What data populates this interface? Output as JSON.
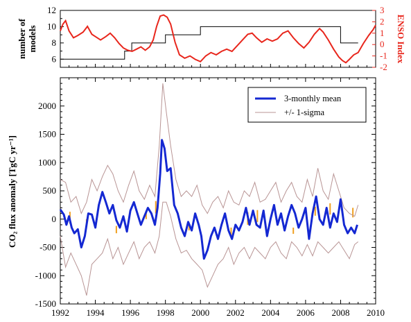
{
  "chart_data": [
    {
      "id": "top-panel",
      "type": "line",
      "ylabel_left_lines": [
        "number of",
        "models"
      ],
      "ylabel_right": "ENSO Index",
      "xlim": [
        1992,
        2010
      ],
      "ylim_left": [
        5,
        12
      ],
      "ylim_right": [
        -2,
        3
      ],
      "yticks_left": [
        6,
        8,
        10,
        12
      ],
      "yticks_right": [
        -2,
        -1,
        0,
        1,
        2,
        3
      ],
      "colors": {
        "models": "#000000",
        "enso": "#e8261c",
        "right_axis": "#e8261c"
      },
      "series": [
        {
          "key": "models",
          "axis": "left",
          "step": true,
          "x": [
            1992.0,
            1995.67,
            1995.67,
            1996.08,
            1996.08,
            1998.0,
            1998.0,
            2000.0,
            2000.0,
            2008.0,
            2008.0,
            2009.0
          ],
          "values": [
            6,
            6,
            7,
            7,
            8,
            8,
            9,
            9,
            10,
            10,
            8,
            8
          ]
        },
        {
          "key": "enso",
          "axis": "right",
          "x": [
            1992.0,
            1992.15,
            1992.3,
            1992.5,
            1992.75,
            1993.0,
            1993.3,
            1993.55,
            1993.8,
            1994.0,
            1994.3,
            1994.6,
            1994.85,
            1995.1,
            1995.35,
            1995.6,
            1995.85,
            1996.1,
            1996.35,
            1996.6,
            1996.85,
            1997.1,
            1997.3,
            1997.5,
            1997.7,
            1997.9,
            1998.1,
            1998.3,
            1998.55,
            1998.8,
            1999.1,
            1999.4,
            1999.7,
            2000.0,
            2000.3,
            2000.6,
            2000.9,
            2001.2,
            2001.5,
            2001.8,
            2002.1,
            2002.4,
            2002.7,
            2002.95,
            2003.2,
            2003.5,
            2003.8,
            2004.1,
            2004.4,
            2004.7,
            2005.0,
            2005.3,
            2005.6,
            2005.9,
            2006.2,
            2006.5,
            2006.8,
            2007.0,
            2007.3,
            2007.6,
            2007.9,
            2008.1,
            2008.3,
            2008.5,
            2008.75,
            2009.0,
            2009.3,
            2009.6,
            2009.85,
            2010.0
          ],
          "values": [
            1.2,
            1.8,
            2.1,
            1.2,
            0.6,
            0.8,
            1.1,
            1.6,
            0.9,
            0.7,
            0.4,
            0.7,
            1.0,
            0.6,
            0.1,
            -0.3,
            -0.5,
            -0.6,
            -0.4,
            -0.2,
            -0.5,
            -0.2,
            0.4,
            1.6,
            2.5,
            2.6,
            2.4,
            1.8,
            0.2,
            -0.9,
            -1.2,
            -1.0,
            -1.3,
            -1.5,
            -1.0,
            -0.7,
            -0.9,
            -0.6,
            -0.4,
            -0.6,
            -0.1,
            0.4,
            0.9,
            1.0,
            0.6,
            0.2,
            0.5,
            0.3,
            0.5,
            1.0,
            1.2,
            0.6,
            0.1,
            -0.3,
            0.2,
            0.9,
            1.4,
            1.1,
            0.4,
            -0.4,
            -1.1,
            -1.4,
            -1.6,
            -1.3,
            -0.9,
            -0.7,
            0.1,
            0.8,
            1.3,
            1.7
          ]
        }
      ]
    },
    {
      "id": "bottom-panel",
      "type": "line",
      "ylabel": "CO₂ flux anomaly [TgC yr⁻¹]",
      "xlim": [
        1992,
        2010
      ],
      "ylim": [
        -1500,
        2500
      ],
      "xticks": [
        1992,
        1994,
        1996,
        1998,
        2000,
        2002,
        2004,
        2006,
        2008,
        2010
      ],
      "yticks": [
        -1500,
        -1000,
        -500,
        0,
        500,
        1000,
        1500,
        2000
      ],
      "xtick_labels": [
        "1992",
        "1994",
        "1996",
        "1998",
        "2000",
        "2002",
        "2004",
        "2006",
        "2008",
        "2010"
      ],
      "ytick_labels": [
        "-1500",
        "-1000",
        "-500",
        "0",
        "500",
        "1000",
        "1500",
        "2000"
      ],
      "legend": {
        "placement": "top-right",
        "entries": [
          {
            "label": "3-monthly mean",
            "color": "#1428d2",
            "key": "mean"
          },
          {
            "label": "+/- 1-sigma",
            "color": "#b89494",
            "key": "sigma"
          }
        ]
      },
      "colors": {
        "mean": "#1428d2",
        "sigma": "#b89494",
        "monthly": "#f0a020"
      },
      "series": [
        {
          "key": "mean",
          "x": [
            1992.0,
            1992.2,
            1992.35,
            1992.5,
            1992.65,
            1992.8,
            1993.0,
            1993.2,
            1993.4,
            1993.6,
            1993.8,
            1994.0,
            1994.2,
            1994.4,
            1994.6,
            1994.8,
            1995.0,
            1995.2,
            1995.4,
            1995.6,
            1995.8,
            1996.0,
            1996.2,
            1996.4,
            1996.6,
            1996.8,
            1997.0,
            1997.2,
            1997.4,
            1997.55,
            1997.7,
            1997.8,
            1997.95,
            1998.1,
            1998.3,
            1998.5,
            1998.7,
            1998.9,
            1999.1,
            1999.3,
            1999.5,
            1999.7,
            1999.9,
            2000.05,
            2000.2,
            2000.4,
            2000.6,
            2000.8,
            2001.0,
            2001.2,
            2001.4,
            2001.6,
            2001.8,
            2002.0,
            2002.2,
            2002.4,
            2002.6,
            2002.8,
            2003.0,
            2003.2,
            2003.4,
            2003.6,
            2003.8,
            2004.0,
            2004.2,
            2004.4,
            2004.6,
            2004.8,
            2005.0,
            2005.2,
            2005.4,
            2005.6,
            2005.8,
            2006.0,
            2006.2,
            2006.4,
            2006.6,
            2006.8,
            2007.0,
            2007.2,
            2007.4,
            2007.6,
            2007.8,
            2008.0,
            2008.2,
            2008.4,
            2008.6,
            2008.8,
            2008.95
          ],
          "values": [
            170,
            80,
            -100,
            50,
            -150,
            -250,
            -180,
            -500,
            -300,
            100,
            80,
            -150,
            250,
            480,
            300,
            100,
            250,
            -20,
            -150,
            50,
            -220,
            150,
            300,
            100,
            -100,
            50,
            200,
            100,
            -100,
            200,
            800,
            1400,
            1250,
            850,
            900,
            250,
            100,
            -150,
            -300,
            -50,
            -200,
            100,
            -100,
            -300,
            -700,
            -550,
            -300,
            -150,
            -350,
            -100,
            100,
            -200,
            -350,
            -100,
            -200,
            -50,
            200,
            -100,
            150,
            -100,
            -150,
            150,
            -300,
            0,
            250,
            -100,
            100,
            -200,
            50,
            250,
            100,
            -150,
            0,
            200,
            -350,
            100,
            400,
            0,
            -100,
            200,
            -150,
            100,
            -50,
            350,
            -100,
            -250,
            -150,
            -250,
            -100
          ]
        },
        {
          "key": "sigma_upper",
          "x": [
            1992.0,
            1992.3,
            1992.6,
            1992.9,
            1993.2,
            1993.5,
            1993.8,
            1994.1,
            1994.4,
            1994.7,
            1995.0,
            1995.3,
            1995.6,
            1995.9,
            1996.2,
            1996.5,
            1996.8,
            1997.1,
            1997.4,
            1997.65,
            1997.85,
            1998.05,
            1998.3,
            1998.6,
            1998.9,
            1999.2,
            1999.5,
            1999.8,
            2000.1,
            2000.4,
            2000.7,
            2001.0,
            2001.3,
            2001.6,
            2001.9,
            2002.2,
            2002.5,
            2002.8,
            2003.1,
            2003.4,
            2003.7,
            2004.0,
            2004.3,
            2004.6,
            2004.9,
            2005.2,
            2005.5,
            2005.8,
            2006.1,
            2006.4,
            2006.7,
            2007.0,
            2007.3,
            2007.6,
            2007.9,
            2008.2,
            2008.5,
            2008.8,
            2009.0
          ],
          "values": [
            700,
            650,
            300,
            400,
            100,
            300,
            700,
            500,
            750,
            950,
            800,
            500,
            300,
            600,
            850,
            500,
            350,
            600,
            400,
            1300,
            2400,
            1900,
            1300,
            700,
            400,
            500,
            400,
            600,
            250,
            100,
            300,
            400,
            200,
            500,
            300,
            250,
            500,
            400,
            650,
            300,
            350,
            500,
            650,
            300,
            500,
            650,
            400,
            300,
            700,
            400,
            900,
            500,
            350,
            800,
            500,
            200,
            100,
            50,
            250
          ]
        },
        {
          "key": "sigma_lower",
          "x": [
            1992.0,
            1992.3,
            1992.6,
            1992.9,
            1993.2,
            1993.5,
            1993.8,
            1994.1,
            1994.4,
            1994.7,
            1995.0,
            1995.3,
            1995.6,
            1995.9,
            1996.2,
            1996.5,
            1996.8,
            1997.1,
            1997.4,
            1997.65,
            1997.85,
            1998.05,
            1998.3,
            1998.6,
            1998.9,
            1999.2,
            1999.5,
            1999.8,
            2000.1,
            2000.4,
            2000.7,
            2001.0,
            2001.3,
            2001.6,
            2001.9,
            2002.2,
            2002.5,
            2002.8,
            2003.1,
            2003.4,
            2003.7,
            2004.0,
            2004.3,
            2004.6,
            2004.9,
            2005.2,
            2005.5,
            2005.8,
            2006.1,
            2006.4,
            2006.7,
            2007.0,
            2007.3,
            2007.6,
            2007.9,
            2008.2,
            2008.5,
            2008.8,
            2009.0
          ],
          "values": [
            -300,
            -850,
            -600,
            -800,
            -1000,
            -1350,
            -800,
            -700,
            -600,
            -350,
            -700,
            -500,
            -800,
            -600,
            -400,
            -700,
            -500,
            -400,
            -600,
            -300,
            300,
            300,
            50,
            -350,
            -600,
            -550,
            -700,
            -800,
            -900,
            -1200,
            -1000,
            -800,
            -700,
            -500,
            -800,
            -600,
            -500,
            -700,
            -500,
            -600,
            -700,
            -500,
            -400,
            -600,
            -700,
            -400,
            -500,
            -650,
            -450,
            -650,
            -400,
            -500,
            -600,
            -500,
            -400,
            -550,
            -700,
            -450,
            -400
          ]
        },
        {
          "key": "monthly_ticks",
          "x": [
            1992.55,
            1993.5,
            1995.2,
            1996.9,
            1997.45,
            1999.35,
            2001.75,
            2002.7,
            2003.25,
            2005.3,
            2006.55,
            2007.4,
            2008.7
          ],
          "values": [
            130,
            0,
            -120,
            150,
            320,
            -80,
            -150,
            120,
            160,
            -150,
            220,
            280,
            200
          ],
          "base": [
            -80,
            -130,
            -250,
            0,
            100,
            -200,
            -280,
            -100,
            -50,
            -260,
            60,
            80,
            30
          ]
        }
      ]
    }
  ]
}
